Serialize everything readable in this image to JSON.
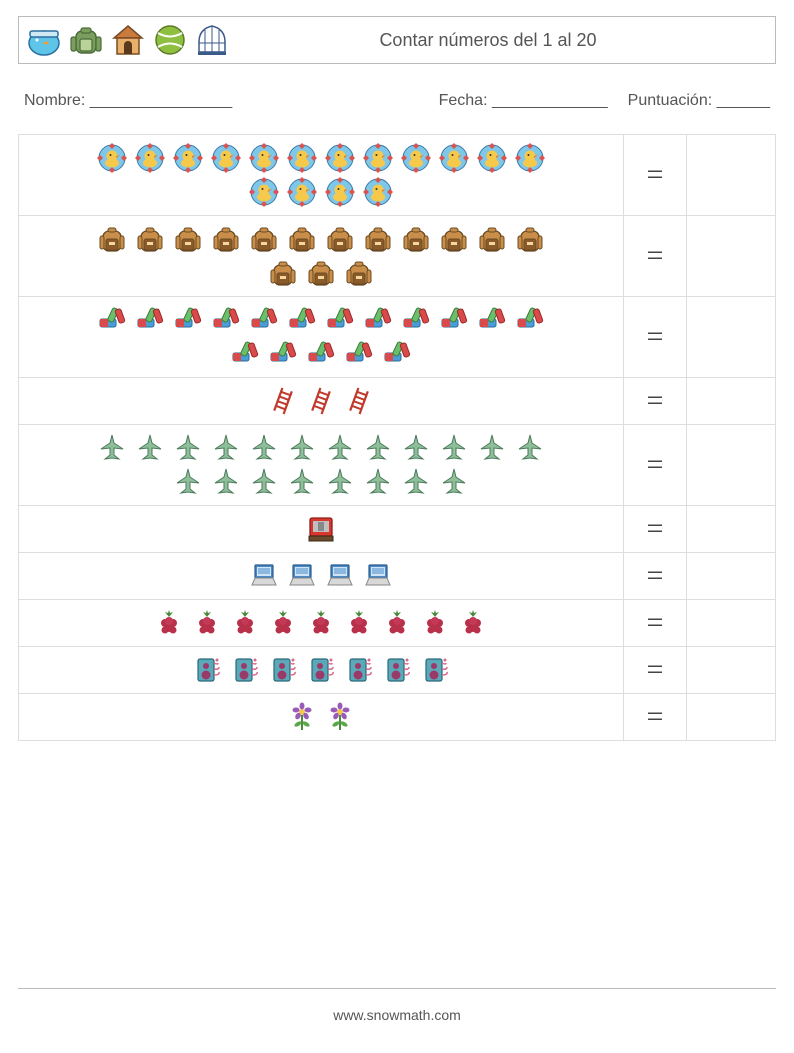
{
  "header": {
    "title": "Contar números del 1 al 20",
    "icons": [
      "fishbowl",
      "backpack",
      "doghouse",
      "tennisball",
      "birdcage"
    ]
  },
  "info": {
    "name_label": "Nombre: ________________",
    "date_label": "Fecha: _____________",
    "score_label": "Puntuación: ______"
  },
  "rows": [
    {
      "icon": "badge-duck",
      "count": 16,
      "equals": "="
    },
    {
      "icon": "backpack-brown",
      "count": 15,
      "equals": "="
    },
    {
      "icon": "markers",
      "count": 17,
      "equals": "="
    },
    {
      "icon": "ladder",
      "count": 3,
      "equals": "="
    },
    {
      "icon": "jet",
      "count": 20,
      "equals": "="
    },
    {
      "icon": "tv",
      "count": 1,
      "equals": "="
    },
    {
      "icon": "laptop",
      "count": 4,
      "equals": "="
    },
    {
      "icon": "raspberry",
      "count": 9,
      "equals": "="
    },
    {
      "icon": "speaker",
      "count": 7,
      "equals": "="
    },
    {
      "icon": "flower",
      "count": 2,
      "equals": "="
    }
  ],
  "footer": {
    "url": "www.snowmath.com"
  },
  "colors": {
    "border": "#dddddd",
    "text": "#555555"
  }
}
